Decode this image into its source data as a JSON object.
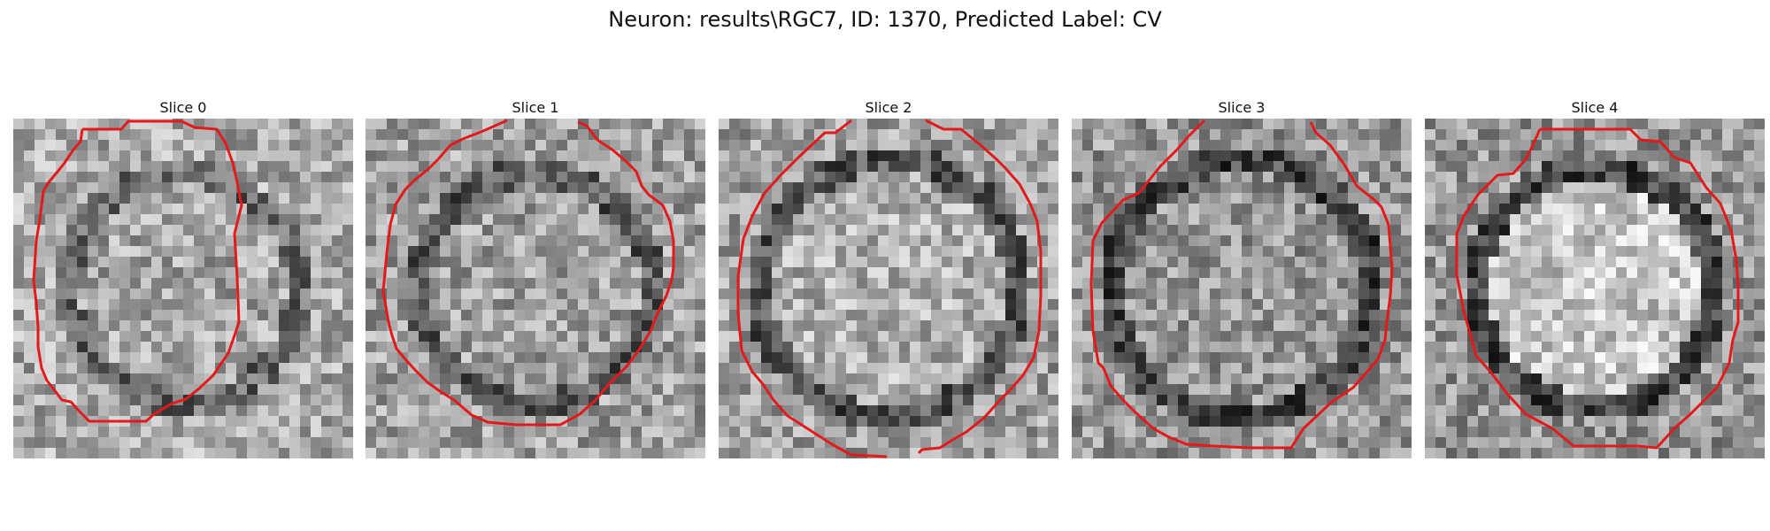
{
  "figure": {
    "title": "Neuron: results\\RGC7, ID: 1370, Predicted Label: CV"
  },
  "panels": [
    {
      "title": "Slice 0"
    },
    {
      "title": "Slice 1"
    },
    {
      "title": "Slice 2"
    },
    {
      "title": "Slice 3"
    },
    {
      "title": "Slice 4"
    }
  ],
  "colors": {
    "outline": "#e31a1c",
    "background": "#ffffff"
  }
}
